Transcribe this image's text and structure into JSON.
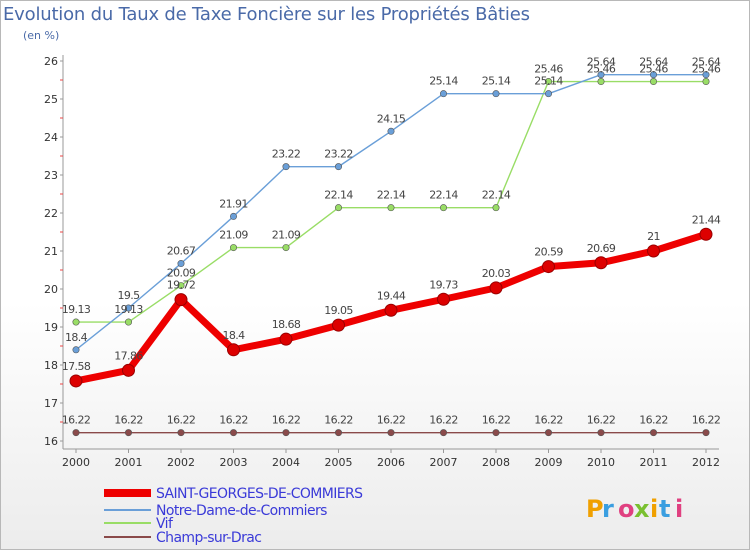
{
  "title": "Evolution du Taux de Taxe Foncière sur les Propriétés Bâties",
  "unit_label": "(en %)",
  "logo_text": "Proxiti",
  "chart_data": {
    "type": "line",
    "title": "Evolution du Taux de Taxe Foncière sur les Propriétés Bâties",
    "ylabel": "(en %)",
    "x": [
      "2000",
      "2001",
      "2002",
      "2003",
      "2004",
      "2005",
      "2006",
      "2007",
      "2008",
      "2009",
      "2010",
      "2011",
      "2012"
    ],
    "ylim": [
      16,
      26
    ],
    "yticks": [
      "16",
      "17",
      "18",
      "19",
      "20",
      "21",
      "22",
      "23",
      "24",
      "25",
      "26"
    ],
    "grid": false,
    "legend_position": "bottom-left",
    "series": [
      {
        "name": "SAINT-GEORGES-DE-COMMIERS",
        "color": "#ee0000",
        "values": [
          17.58,
          17.86,
          19.72,
          18.4,
          18.68,
          19.05,
          19.44,
          19.73,
          20.03,
          20.59,
          20.69,
          21,
          21.44
        ],
        "labels": [
          "17.58",
          "17.86",
          "19.72",
          "18.4",
          "18.68",
          "19.05",
          "19.44",
          "19.73",
          "20.03",
          "20.59",
          "20.69",
          "21",
          "21.44"
        ]
      },
      {
        "name": "Notre-Dame-de-Commiers",
        "color": "#6a9fd8",
        "values": [
          18.4,
          19.5,
          20.67,
          21.91,
          23.22,
          23.22,
          24.15,
          25.14,
          25.14,
          25.14,
          25.64,
          25.64,
          25.64
        ],
        "labels": [
          "18.4",
          "19.5",
          "20.67",
          "21.91",
          "23.22",
          "23.22",
          "24.15",
          "25.14",
          "25.14",
          "25.14",
          "25.64",
          "25.64",
          "25.64"
        ]
      },
      {
        "name": "Vif",
        "color": "#99dd66",
        "values": [
          19.13,
          19.13,
          20.09,
          21.09,
          21.09,
          22.14,
          22.14,
          22.14,
          22.14,
          25.46,
          25.46,
          25.46,
          25.46
        ],
        "labels": [
          "19.13",
          "19.13",
          "20.09",
          "21.09",
          "21.09",
          "22.14",
          "22.14",
          "22.14",
          "22.14",
          "25.46",
          "25.46",
          "25.46",
          "25.46"
        ]
      },
      {
        "name": "Champ-sur-Drac",
        "color": "#8a4a4a",
        "values": [
          16.22,
          16.22,
          16.22,
          16.22,
          16.22,
          16.22,
          16.22,
          16.22,
          16.22,
          16.22,
          16.22,
          16.22,
          16.22
        ],
        "labels": [
          "16.22",
          "16.22",
          "16.22",
          "16.22",
          "16.22",
          "16.22",
          "16.22",
          "16.22",
          "16.22",
          "16.22",
          "16.22",
          "16.22",
          "16.22"
        ]
      }
    ]
  }
}
